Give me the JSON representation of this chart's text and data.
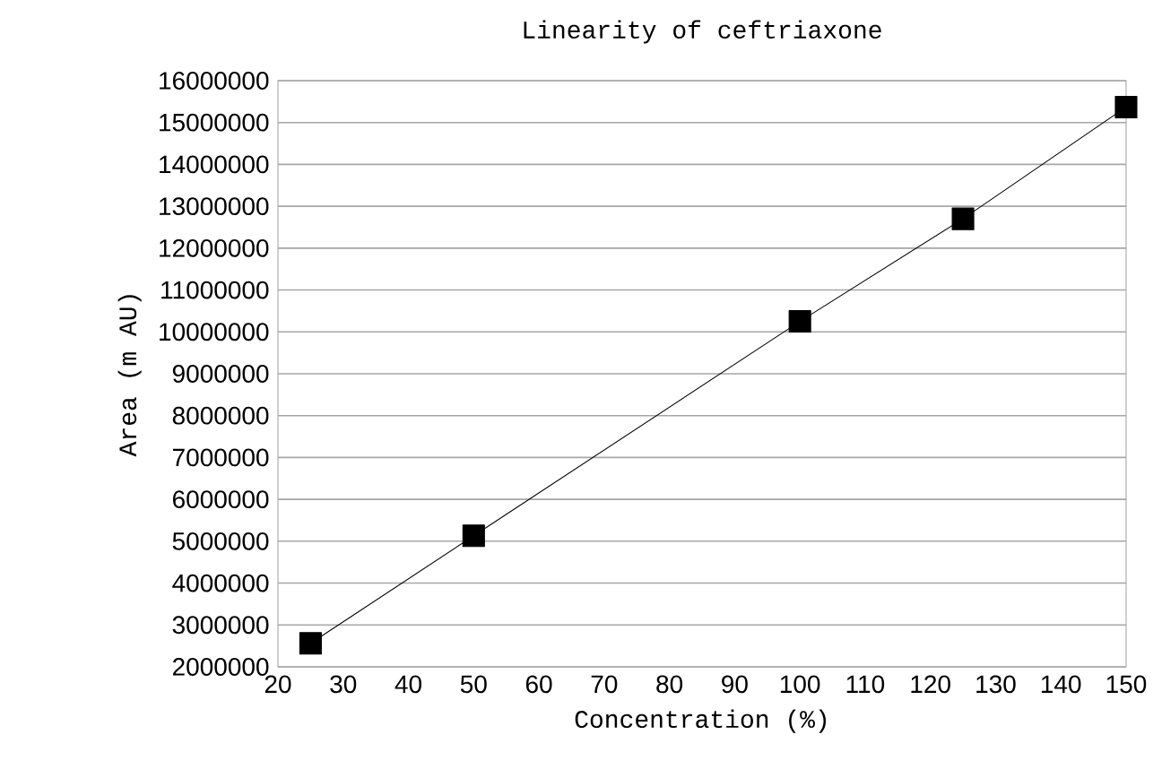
{
  "chart_data": {
    "type": "line",
    "title": "Linearity of ceftriaxone",
    "xlabel": "Concentration (%)",
    "ylabel": "Area (m AU)",
    "x": [
      25,
      50,
      100,
      125,
      150
    ],
    "series": [
      {
        "color": "#000000",
        "values": [
          2560000,
          5130000,
          10250000,
          12700000,
          15370000
        ]
      }
    ],
    "xlim": [
      20,
      150
    ],
    "xticks": [
      20,
      30,
      40,
      50,
      60,
      70,
      80,
      90,
      100,
      110,
      120,
      130,
      140,
      150
    ],
    "ylim": [
      2000000,
      16000000
    ],
    "yticks": [
      2000000,
      3000000,
      4000000,
      5000000,
      6000000,
      7000000,
      8000000,
      9000000,
      10000000,
      11000000,
      12000000,
      13000000,
      14000000,
      15000000,
      16000000
    ],
    "grid": "y",
    "marker": "square",
    "line_style": "solid"
  }
}
